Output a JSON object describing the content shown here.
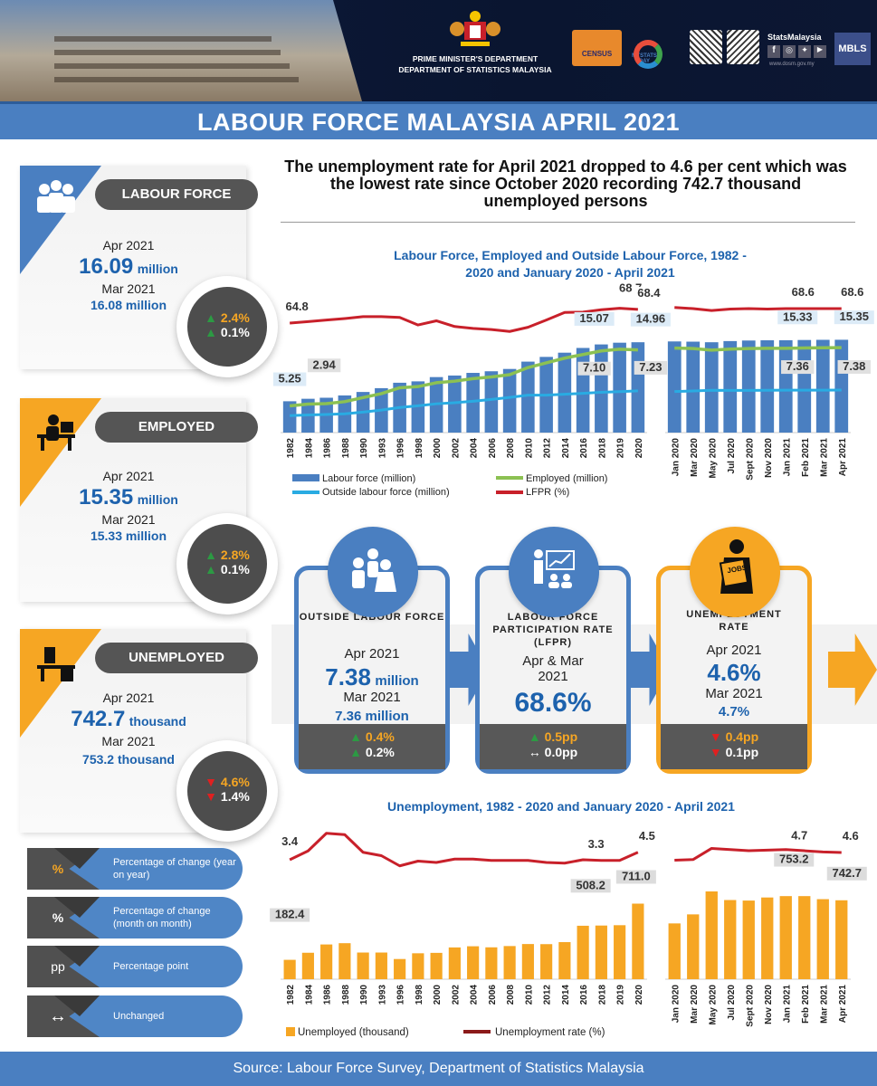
{
  "header": {
    "dept1": "PRIME MINISTER'S DEPARTMENT",
    "dept2": "DEPARTMENT OF STATISTICS MALAYSIA",
    "census": "CENSUS",
    "mystats": "MYSTATS DAY",
    "stats_brand": "StatsMalaysia",
    "website": "www.dosm.gov.my",
    "mbls": "MBLS"
  },
  "title": "LABOUR FORCE MALAYSIA APRIL 2021",
  "headline": "The unemployment rate for April 2021 dropped to 4.6 per cent which was the lowest rate since October 2020 recording 742.7 thousand unemployed persons",
  "left_cards": [
    {
      "label": "LABOUR FORCE",
      "cur_period": "Apr 2021",
      "cur_value": "16.09",
      "cur_unit": "million",
      "prev_period": "Mar 2021",
      "prev_value": "16.08 million",
      "yoy": "2.4%",
      "yoy_dir": "up",
      "mom": "0.1%",
      "mom_dir": "up"
    },
    {
      "label": "EMPLOYED",
      "cur_period": "Apr 2021",
      "cur_value": "15.35",
      "cur_unit": "million",
      "prev_period": "Mar 2021",
      "prev_value": "15.33 million",
      "yoy": "2.8%",
      "yoy_dir": "up",
      "mom": "0.1%",
      "mom_dir": "up"
    },
    {
      "label": "UNEMPLOYED",
      "cur_period": "Apr 2021",
      "cur_value": "742.7",
      "cur_unit": "thousand",
      "prev_period": "Mar 2021",
      "prev_value": "753.2 thousand",
      "yoy": "4.6%",
      "yoy_dir": "down",
      "mom": "1.4%",
      "mom_dir": "down"
    }
  ],
  "mid_cards": [
    {
      "title": "OUTSIDE LABOUR FORCE",
      "cur_period": "Apr 2021",
      "cur_value": "7.38",
      "cur_unit": "million",
      "prev_period": "Mar 2021",
      "prev_value": "7.36 million",
      "yoy": "0.4%",
      "yoy_sym": "▲",
      "mom": "0.2%",
      "mom_sym": "▲"
    },
    {
      "title": "LABOUR FORCE PARTICIPATION RATE (LFPR)",
      "period": "Apr & Mar 2021",
      "value": "68.6%",
      "yoy": "0.5pp",
      "yoy_sym": "▲",
      "mom": "0.0pp",
      "mom_sym": "↔"
    },
    {
      "title": "UNEMPLOYMENT RATE",
      "cur_period": "Apr 2021",
      "cur_value": "4.6%",
      "prev_period": "Mar 2021",
      "prev_value": "4.7%",
      "yoy": "0.4pp",
      "yoy_sym": "▼",
      "mom": "0.1pp",
      "mom_sym": "▼"
    }
  ],
  "legend_pills": [
    {
      "symbol": "%",
      "text": "Percentage of change (year on year)"
    },
    {
      "symbol": "%",
      "text": "Percentage of change (month on month)"
    },
    {
      "symbol": "pp",
      "text": "Percentage point"
    },
    {
      "symbol": "↔",
      "text": "Unchanged"
    }
  ],
  "colors": {
    "blue": "#4a7fc1",
    "orange": "#f6a623",
    "green": "#8cc152",
    "cyan": "#29abe2",
    "red": "#c8202a",
    "darkred": "#8b1a1a"
  },
  "chart_data": [
    {
      "type": "bar",
      "title": "Labour Force, Employed and Outside Labour Force, 1982 - 2020 and January 2020 - April 2021",
      "panels": [
        {
          "categories": [
            "1982",
            "1984",
            "1986",
            "1988",
            "1990",
            "1993",
            "1996",
            "1998",
            "2000",
            "2002",
            "2004",
            "2006",
            "2008",
            "2010",
            "2012",
            "2014",
            "2016",
            "2018",
            "2019",
            "2020"
          ],
          "labour_force": [
            5.43,
            5.86,
            6.04,
            6.44,
            7.04,
            7.7,
            8.64,
            8.88,
            9.62,
            9.89,
            10.35,
            10.63,
            11.03,
            12.3,
            13.12,
            13.85,
            14.67,
            15.28,
            15.58,
            15.66
          ],
          "employed": [
            5.25,
            5.57,
            5.64,
            5.99,
            6.69,
            7.38,
            8.4,
            8.6,
            9.27,
            9.54,
            9.98,
            10.28,
            10.66,
            11.9,
            12.72,
            13.53,
            14.16,
            14.78,
            15.07,
            14.96
          ],
          "outside_labour_force": [
            2.94,
            3.05,
            3.13,
            3.25,
            3.55,
            3.9,
            4.36,
            4.65,
            4.99,
            5.18,
            5.43,
            5.74,
            6.09,
            6.49,
            6.49,
            6.65,
            6.8,
            6.99,
            7.1,
            7.23
          ],
          "lfpr": [
            64.8,
            65.2,
            65.6,
            66.0,
            66.5,
            66.5,
            66.3,
            64.3,
            65.4,
            63.9,
            63.4,
            63.1,
            62.6,
            63.7,
            65.6,
            67.6,
            67.7,
            68.3,
            68.7,
            68.4
          ],
          "labels": {
            "lfpr": [
              [
                0,
                "64.8"
              ],
              [
                18,
                "68.7"
              ],
              [
                19,
                "68.4"
              ]
            ],
            "employed": [
              [
                0,
                "5.25"
              ],
              [
                18,
                "15.07"
              ],
              [
                19,
                "14.96"
              ]
            ],
            "outside_labour_force": [
              [
                0,
                "2.94"
              ],
              [
                18,
                "7.10"
              ],
              [
                19,
                "7.23"
              ]
            ]
          }
        },
        {
          "categories": [
            "Jan 2020",
            "Mar 2020",
            "May 2020",
            "Jul 2020",
            "Sept 2020",
            "Nov 2020",
            "Jan 2021",
            "Feb 2021",
            "Mar 2021",
            "Apr 2021"
          ],
          "labour_force": [
            15.8,
            15.76,
            15.66,
            15.86,
            15.96,
            16.0,
            16.01,
            16.05,
            16.08,
            16.09
          ],
          "employed": [
            15.28,
            15.2,
            14.92,
            15.1,
            15.19,
            15.24,
            15.24,
            15.29,
            15.33,
            15.35
          ],
          "outside_labour_force": [
            7.11,
            7.22,
            7.34,
            7.32,
            7.32,
            7.34,
            7.35,
            7.35,
            7.36,
            7.38
          ],
          "lfpr": [
            68.9,
            68.6,
            68.1,
            68.5,
            68.6,
            68.5,
            68.6,
            68.6,
            68.6,
            68.6
          ],
          "labels": {
            "lfpr": [
              [
                8,
                "68.6"
              ],
              [
                9,
                "68.6"
              ]
            ],
            "employed": [
              [
                8,
                "15.33"
              ],
              [
                9,
                "15.35"
              ]
            ],
            "outside_labour_force": [
              [
                8,
                "7.36"
              ],
              [
                9,
                "7.38"
              ]
            ]
          }
        }
      ],
      "legend": [
        "Labour force (million)",
        "Employed (million)",
        "Outside labour force (million)",
        "LFPR (%)"
      ],
      "legend_placement": "bottom"
    },
    {
      "type": "bar",
      "title": "Unemployment, 1982 - 2020 and January 2020 - April 2021",
      "panels": [
        {
          "categories": [
            "1982",
            "1984",
            "1986",
            "1988",
            "1990",
            "1993",
            "1996",
            "1998",
            "2000",
            "2002",
            "2004",
            "2006",
            "2008",
            "2010",
            "2012",
            "2014",
            "2016",
            "2018",
            "2019",
            "2020"
          ],
          "unemployed": [
            182.4,
            249,
            327,
            339,
            251,
            251,
            190,
            244,
            248,
            299,
            310,
            300,
            312,
            331,
            330,
            349,
            503,
            505,
            508.2,
            711.0
          ],
          "rate": [
            3.4,
            4.7,
            7.3,
            7.1,
            4.5,
            4.0,
            2.5,
            3.2,
            3.0,
            3.5,
            3.5,
            3.3,
            3.3,
            3.3,
            3.0,
            2.9,
            3.4,
            3.3,
            3.3,
            4.5
          ],
          "labels": {
            "rate": [
              [
                0,
                "3.4"
              ],
              [
                18,
                "3.3"
              ],
              [
                19,
                "4.5"
              ]
            ],
            "unemployed": [
              [
                0,
                "182.4"
              ],
              [
                18,
                "508.2"
              ],
              [
                19,
                "711.0"
              ]
            ]
          }
        },
        {
          "categories": [
            "Jan 2020",
            "Mar 2020",
            "May 2020",
            "Jul 2020",
            "Sept 2020",
            "Nov 2020",
            "Jan 2021",
            "Feb 2021",
            "Mar 2021",
            "Apr 2021"
          ],
          "unemployed": [
            525,
            610,
            826,
            745,
            740,
            769,
            782,
            782,
            753.2,
            742.7
          ],
          "rate": [
            3.3,
            3.4,
            5.3,
            5.1,
            4.9,
            5.0,
            5.1,
            4.9,
            4.7,
            4.6
          ],
          "labels": {
            "rate": [
              [
                8,
                "4.7"
              ],
              [
                9,
                "4.6"
              ]
            ],
            "unemployed": [
              [
                8,
                "753.2"
              ],
              [
                9,
                "742.7"
              ]
            ]
          }
        }
      ],
      "legend": [
        "Unemployed (thousand)",
        "Unemployment rate (%)"
      ],
      "legend_placement": "bottom"
    }
  ],
  "footer": "Source: Labour Force Survey, Department of Statistics Malaysia"
}
